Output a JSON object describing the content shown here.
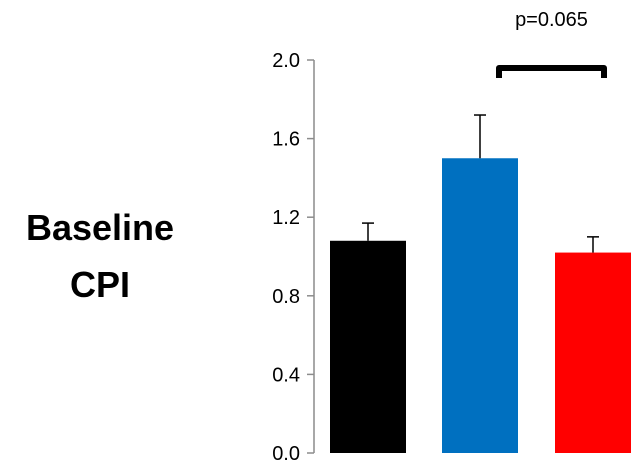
{
  "chart_data": {
    "type": "bar",
    "title": "",
    "xlabel": "",
    "ylabel": "Baseline CPI",
    "ylabel_lines": [
      "Baseline",
      "CPI"
    ],
    "ylim": [
      0,
      2.0
    ],
    "yticks": [
      "0.0",
      "0.4",
      "0.8",
      "1.2",
      "1.6",
      "2.0"
    ],
    "categories": [
      "",
      "",
      ""
    ],
    "values": [
      1.08,
      1.5,
      1.02
    ],
    "errors": [
      0.09,
      0.22,
      0.08
    ],
    "colors": [
      "#000000",
      "#0070C0",
      "#FF0000"
    ],
    "grid": false,
    "legend": "none",
    "annotations": [
      {
        "text": "p=0.065",
        "between": [
          1,
          2
        ]
      }
    ]
  }
}
